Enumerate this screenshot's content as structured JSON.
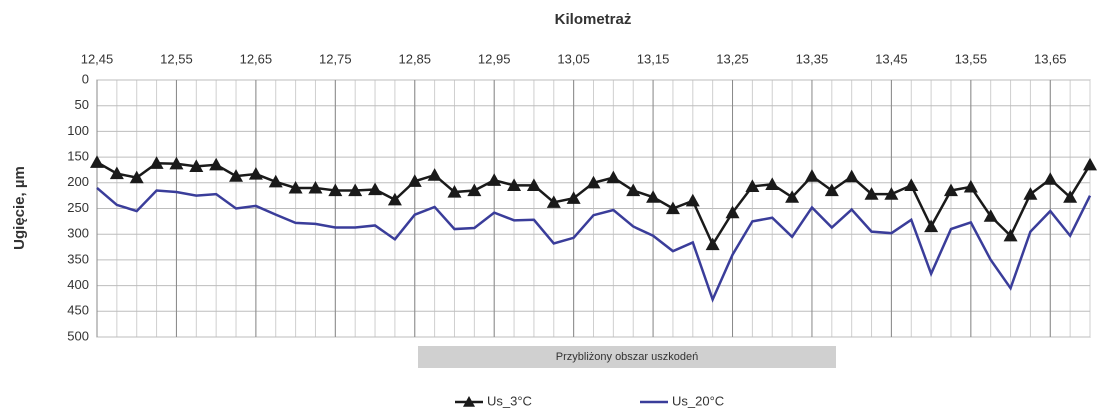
{
  "chart_data": {
    "type": "line",
    "x_label": "Kilometraż",
    "y_label": "Ugięcie, µm",
    "annotation": "Przybliżony obszar uszkodeń",
    "x": [
      12.45,
      12.475,
      12.5,
      12.525,
      12.55,
      12.575,
      12.6,
      12.625,
      12.65,
      12.675,
      12.7,
      12.725,
      12.75,
      12.775,
      12.8,
      12.825,
      12.85,
      12.875,
      12.9,
      12.925,
      12.95,
      12.975,
      13.0,
      13.025,
      13.05,
      13.075,
      13.1,
      13.125,
      13.15,
      13.175,
      13.2,
      13.225,
      13.25,
      13.275,
      13.3,
      13.325,
      13.35,
      13.375,
      13.4,
      13.425,
      13.45,
      13.475,
      13.5,
      13.525,
      13.55,
      13.575,
      13.6,
      13.625,
      13.65,
      13.675,
      13.7
    ],
    "series": [
      {
        "name": "Us_3°C",
        "color": "#1a1a1a",
        "marker": "triangle",
        "values": [
          160,
          182,
          190,
          162,
          163,
          168,
          165,
          187,
          183,
          198,
          210,
          210,
          215,
          215,
          213,
          233,
          197,
          185,
          218,
          215,
          195,
          205,
          205,
          238,
          230,
          200,
          190,
          215,
          228,
          250,
          235,
          320,
          258,
          207,
          203,
          228,
          187,
          215,
          188,
          222,
          222,
          205,
          285,
          215,
          208,
          265,
          303,
          222,
          193,
          228,
          165
        ]
      },
      {
        "name": "Us_20°C",
        "color": "#3a3d9a",
        "values": [
          210,
          243,
          255,
          215,
          218,
          225,
          222,
          250,
          245,
          262,
          278,
          280,
          287,
          287,
          283,
          310,
          262,
          247,
          290,
          288,
          258,
          273,
          272,
          318,
          307,
          263,
          253,
          285,
          303,
          333,
          316,
          427,
          340,
          275,
          268,
          305,
          248,
          287,
          252,
          295,
          298,
          272,
          377,
          290,
          277,
          350,
          405,
          295,
          255,
          303,
          225
        ]
      }
    ],
    "xlim": [
      12.45,
      13.7
    ],
    "xticks": [
      {
        "value": 12.45,
        "label": "12,45"
      },
      {
        "value": 12.55,
        "label": "12,55"
      },
      {
        "value": 12.65,
        "label": "12,65"
      },
      {
        "value": 12.75,
        "label": "12,75"
      },
      {
        "value": 12.85,
        "label": "12,85"
      },
      {
        "value": 12.95,
        "label": "12,95"
      },
      {
        "value": 13.05,
        "label": "13,05"
      },
      {
        "value": 13.15,
        "label": "13,15"
      },
      {
        "value": 13.25,
        "label": "13,25"
      },
      {
        "value": 13.35,
        "label": "13,35"
      },
      {
        "value": 13.45,
        "label": "13,45"
      },
      {
        "value": 13.55,
        "label": "13,55"
      },
      {
        "value": 13.65,
        "label": "13,65"
      }
    ],
    "ylim": [
      0,
      500
    ],
    "yticks": [
      0,
      50,
      100,
      150,
      200,
      250,
      300,
      350,
      400,
      450,
      500
    ],
    "y_inverted": true,
    "grid": true
  }
}
